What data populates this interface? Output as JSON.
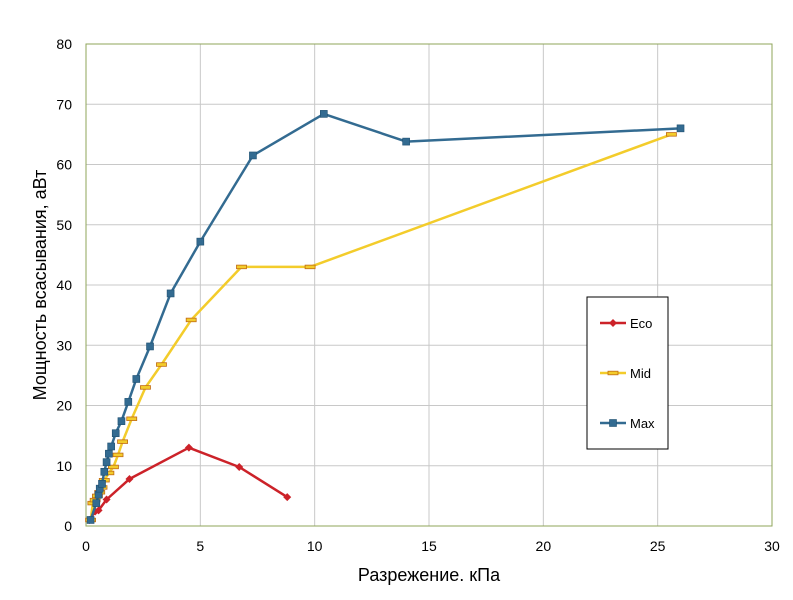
{
  "chart_data": {
    "type": "line",
    "title": "",
    "xlabel": "Разрежение. кПа",
    "ylabel": "Мощность всасывания, аВт",
    "xlim": [
      0,
      30
    ],
    "ylim": [
      0,
      80
    ],
    "xticks": [
      "0",
      "5",
      "10",
      "15",
      "20",
      "25",
      "30"
    ],
    "yticks": [
      "0",
      "10",
      "20",
      "30",
      "40",
      "50",
      "60",
      "70",
      "80"
    ],
    "grid": true,
    "legend_position": "right",
    "series": [
      {
        "name": "Eco",
        "color": "#cc2229",
        "marker": "diamond",
        "points": [
          [
            0.15,
            1.0
          ],
          [
            0.4,
            2.4
          ],
          [
            0.55,
            2.6
          ],
          [
            0.9,
            4.4
          ],
          [
            1.9,
            7.8
          ],
          [
            4.5,
            13.0
          ],
          [
            6.7,
            9.8
          ],
          [
            8.8,
            4.8
          ]
        ]
      },
      {
        "name": "Mid",
        "color": "#f3cc2b",
        "marker": "dash",
        "points": [
          [
            0.2,
            1.0
          ],
          [
            0.3,
            3.8
          ],
          [
            0.4,
            4.3
          ],
          [
            0.5,
            5.0
          ],
          [
            0.6,
            5.6
          ],
          [
            0.7,
            6.4
          ],
          [
            0.8,
            7.6
          ],
          [
            1.0,
            8.8
          ],
          [
            1.2,
            9.8
          ],
          [
            1.4,
            11.8
          ],
          [
            1.6,
            14.0
          ],
          [
            2.0,
            17.8
          ],
          [
            2.6,
            23.0
          ],
          [
            3.3,
            26.8
          ],
          [
            4.6,
            34.2
          ],
          [
            6.8,
            43.0
          ],
          [
            9.8,
            43.0
          ],
          [
            25.6,
            65.0
          ]
        ]
      },
      {
        "name": "Max",
        "color": "#336b91",
        "marker": "square",
        "points": [
          [
            0.2,
            1.0
          ],
          [
            0.45,
            3.8
          ],
          [
            0.55,
            5.2
          ],
          [
            0.6,
            6.2
          ],
          [
            0.7,
            7.0
          ],
          [
            0.8,
            9.0
          ],
          [
            0.9,
            10.6
          ],
          [
            1.0,
            12.0
          ],
          [
            1.1,
            13.2
          ],
          [
            1.3,
            15.4
          ],
          [
            1.55,
            17.4
          ],
          [
            1.85,
            20.6
          ],
          [
            2.2,
            24.4
          ],
          [
            2.8,
            29.8
          ],
          [
            3.7,
            38.6
          ],
          [
            5.0,
            47.2
          ],
          [
            7.3,
            61.5
          ],
          [
            10.4,
            68.4
          ],
          [
            14.0,
            63.8
          ],
          [
            26.0,
            66.0
          ]
        ]
      }
    ]
  }
}
